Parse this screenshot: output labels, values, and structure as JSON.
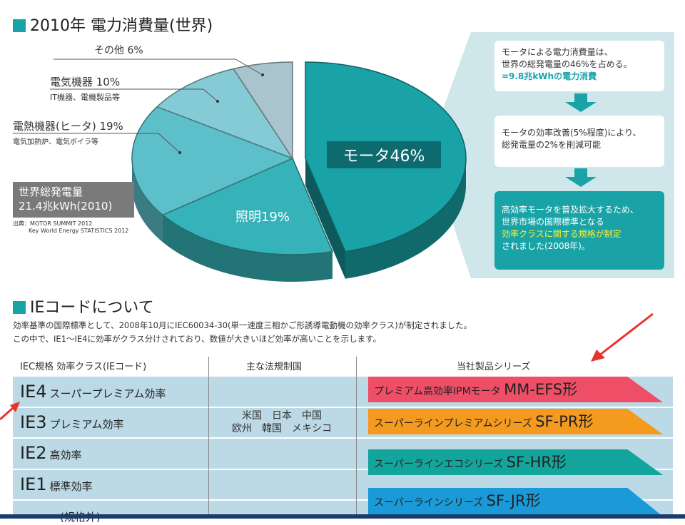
{
  "section1": {
    "title": "2010年 電力消費量(世界)"
  },
  "chart_data": {
    "type": "pie",
    "title": "2010年 電力消費量(世界)",
    "slices": [
      {
        "label": "モータ46%",
        "name": "モータ",
        "value": 46,
        "color": "#1aa3a6"
      },
      {
        "label": "照明19%",
        "name": "照明",
        "value": 19,
        "color": "#35b3b8"
      },
      {
        "label": "電熱機器(ヒータ) 19%",
        "name": "電熱機器(ヒータ)",
        "value": 19,
        "color": "#5cbfc9",
        "note": "電気加熱炉、電気ボイラ等"
      },
      {
        "label": "電気機器 10%",
        "name": "電気機器",
        "value": 10,
        "color": "#84cbd6",
        "note": "IT機器、電機製品等"
      },
      {
        "label": "その他 6%",
        "name": "その他",
        "value": 6,
        "color": "#a9c4cc"
      }
    ]
  },
  "total": {
    "line1": "世界総発電量",
    "line2": "21.4兆kWh(2010)"
  },
  "source": {
    "line1": "出典：MOTOR SUMMIT 2012",
    "line2": "Key World Energy STATISTICS 2012"
  },
  "panel": {
    "box1": {
      "line1": "モータによる電力消費量は、",
      "line2": "世界の総発電量の46%を占める。",
      "line3": "=9.8兆kWhの電力消費"
    },
    "box2": {
      "line1": "モータの効率改善(5%程度)により、",
      "line2": "総発電量の2%を削減可能"
    },
    "box3": {
      "line1": "高効率モータを普及拡大するため、",
      "line2": "世界市場の国際標準となる",
      "line3": "効率クラスに関する規格が制定",
      "line4": "されました(2008年)。"
    }
  },
  "section2": {
    "title": "IEコードについて",
    "desc1": "効率基準の国際標準として、2008年10月にIEC60034-30(単一速度三相かご形誘導電動機の効率クラス)が制定されました。",
    "desc2": "この中で、IE1～IE4に効率がクラス分けされており、数値が大きいほど効率が高いことを示します。"
  },
  "table": {
    "headers": [
      "IEC規格 効率クラス(IEコード)",
      "主な法規制国",
      "当社製品シリーズ"
    ],
    "rows": [
      {
        "code": "IE4",
        "name": "スーパープレミアム効率"
      },
      {
        "code": "IE3",
        "name": "プレミアム効率"
      },
      {
        "code": "IE2",
        "name": "高効率"
      },
      {
        "code": "IE1",
        "name": "標準効率"
      },
      {
        "code": "",
        "name": "(規格外)"
      }
    ],
    "countries": {
      "line1": "米国　日本　中国",
      "line2": "欧州　韓国　メキシコ"
    },
    "products": [
      {
        "text": "プレミアム高効率IPMモータ",
        "model": "MM-EFS形",
        "color": "#ee4f66"
      },
      {
        "text": "スーパーラインプレミアムシリーズ",
        "model": "SF-PR形",
        "color": "#f39a1f"
      },
      {
        "text": "スーパーラインエコシリーズ",
        "model": "SF-HR形",
        "color": "#13a59c"
      },
      {
        "text": "スーパーラインシリーズ",
        "model": "SF-JR形",
        "color": "#1a9ad8"
      }
    ]
  }
}
